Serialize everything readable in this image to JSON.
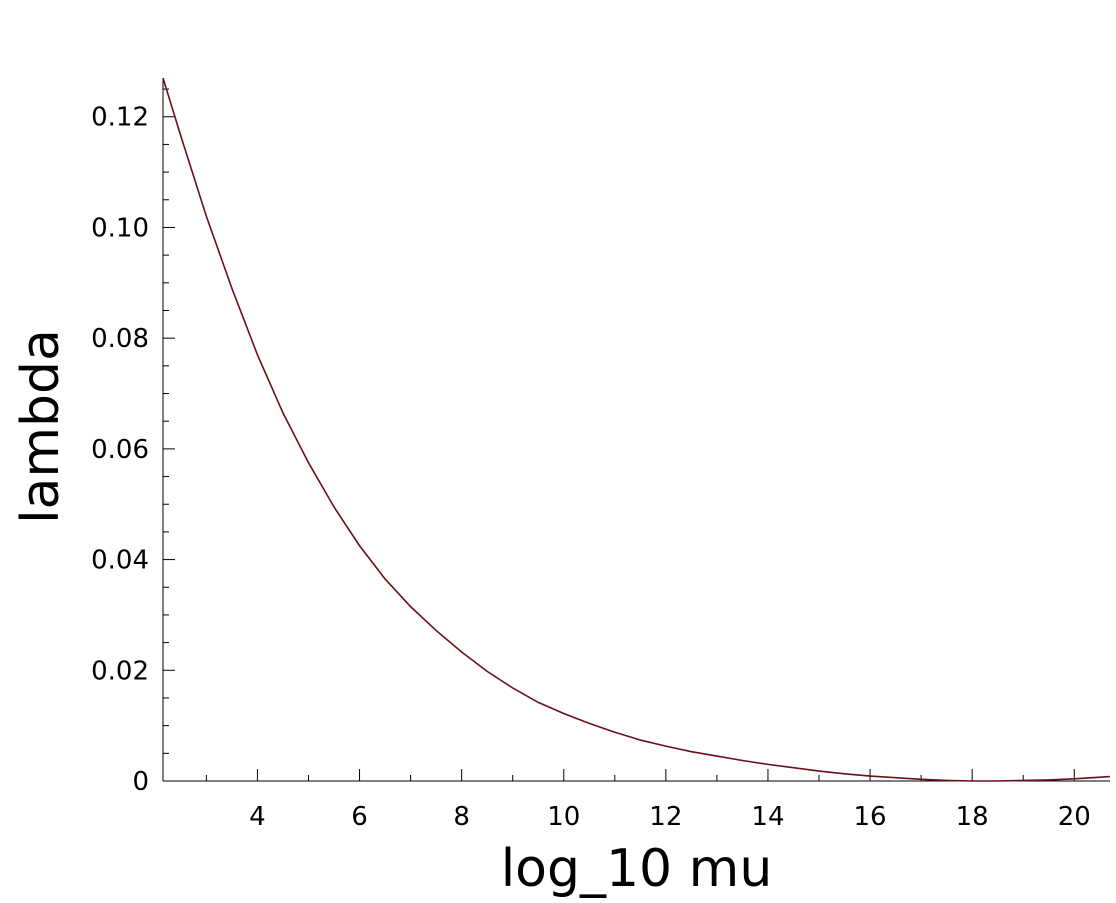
{
  "chart_data": {
    "type": "line",
    "title": "",
    "xlabel": "log_10 mu",
    "ylabel": "lambda",
    "xlim": [
      2.15,
      20.7
    ],
    "ylim": [
      0,
      0.127
    ],
    "grid": false,
    "legend": "none",
    "line_color": "#6b0f1a",
    "x_ticks": [
      {
        "value": 4,
        "label": "4"
      },
      {
        "value": 6,
        "label": "6"
      },
      {
        "value": 8,
        "label": "8"
      },
      {
        "value": 10,
        "label": "10"
      },
      {
        "value": 12,
        "label": "12"
      },
      {
        "value": 14,
        "label": "14"
      },
      {
        "value": 16,
        "label": "16"
      },
      {
        "value": 18,
        "label": "18"
      },
      {
        "value": 20,
        "label": "20"
      }
    ],
    "x_minor_ticks": [
      3,
      5,
      7,
      9,
      11,
      13,
      15,
      17,
      19
    ],
    "y_ticks": [
      {
        "value": 0,
        "label": "0"
      },
      {
        "value": 0.02,
        "label": "0.02"
      },
      {
        "value": 0.04,
        "label": "0.04"
      },
      {
        "value": 0.06,
        "label": "0.06"
      },
      {
        "value": 0.08,
        "label": "0.08"
      },
      {
        "value": 0.1,
        "label": "0.10"
      },
      {
        "value": 0.12,
        "label": "0.12"
      }
    ],
    "y_minor_ticks": [
      0.005,
      0.01,
      0.015,
      0.025,
      0.03,
      0.035,
      0.045,
      0.05,
      0.055,
      0.065,
      0.07,
      0.075,
      0.085,
      0.09,
      0.095,
      0.105,
      0.11,
      0.115,
      0.125
    ],
    "series": [
      {
        "x": [
          2.15,
          2.5,
          3,
          3.5,
          4,
          4.5,
          5,
          5.5,
          6,
          6.5,
          7,
          7.5,
          8,
          8.5,
          9,
          9.5,
          10,
          10.5,
          11,
          11.5,
          12,
          12.5,
          13,
          13.5,
          14,
          14.5,
          15,
          15.5,
          16,
          16.5,
          17,
          17.5,
          18,
          18.5,
          19,
          19.5,
          20,
          20.7
        ],
        "y": [
          0.127,
          0.1165,
          0.102,
          0.089,
          0.077,
          0.0665,
          0.0575,
          0.0495,
          0.0425,
          0.0365,
          0.0315,
          0.0272,
          0.0233,
          0.0198,
          0.0168,
          0.0142,
          0.0122,
          0.0104,
          0.0088,
          0.0074,
          0.0063,
          0.0053,
          0.0045,
          0.0037,
          0.003,
          0.0024,
          0.0018,
          0.0013,
          0.0009,
          0.0006,
          0.0003,
          0.0001,
          0.0,
          0.0,
          0.0001,
          0.0002,
          0.0004,
          0.0008
        ]
      }
    ]
  }
}
